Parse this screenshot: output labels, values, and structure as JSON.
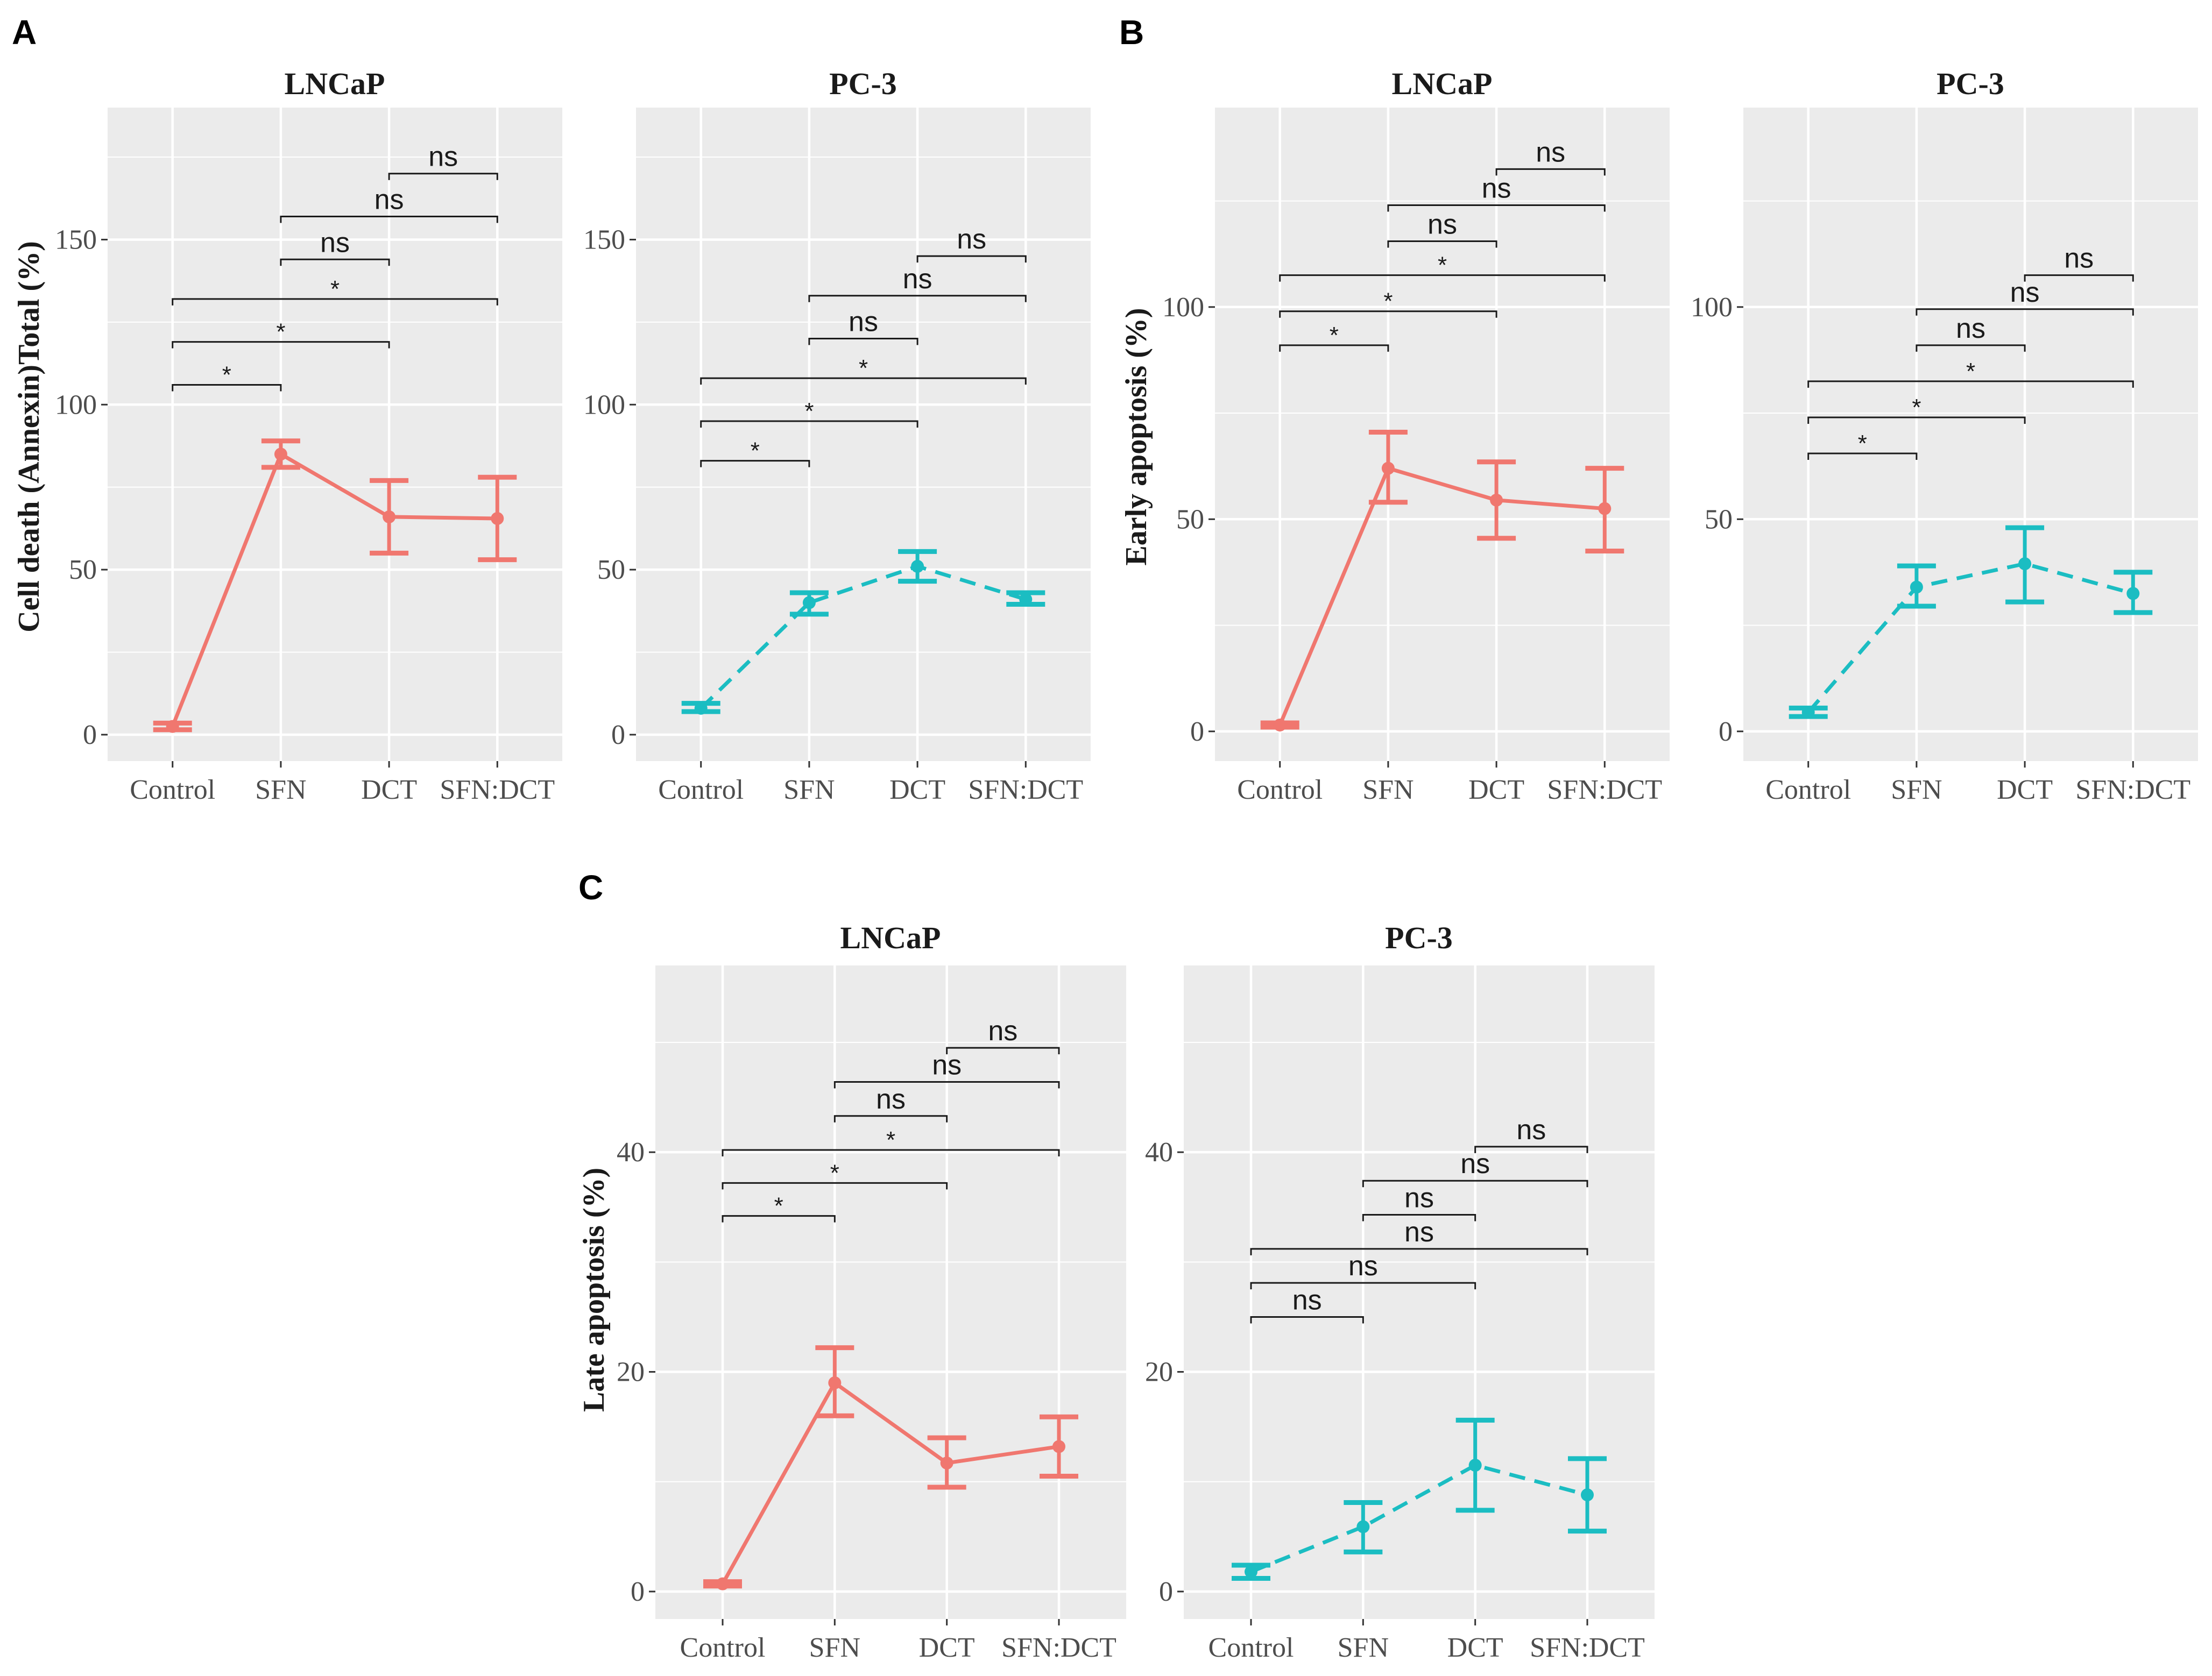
{
  "colors": {
    "LNCaP": "#F0776F",
    "PC-3": "#1BBDC2",
    "panel_bg": "#EBEBEB",
    "grid": "#FFFFFF",
    "bracket": "#1a1a1a"
  },
  "chart_data": [
    {
      "panel": "A",
      "type": "line",
      "ylabel": "Cell death (Annexin)Total (%)",
      "facets": [
        {
          "title": "LNCaP",
          "color_key": "LNCaP",
          "line_style": "solid",
          "categories": [
            "Control",
            "SFN",
            "DCT",
            "SFN:DCT"
          ],
          "ylim": [
            -8,
            190
          ],
          "yticks": [
            0,
            50,
            100,
            150
          ],
          "values": [
            2.5,
            85,
            66,
            65.5
          ],
          "err_low": [
            1.5,
            81,
            55,
            53
          ],
          "err_high": [
            3.5,
            89,
            77,
            78
          ],
          "comparisons": [
            {
              "from": 1,
              "to": 2,
              "y": 106,
              "label": "*"
            },
            {
              "from": 1,
              "to": 3,
              "y": 119,
              "label": "*"
            },
            {
              "from": 1,
              "to": 4,
              "y": 132,
              "label": "*"
            },
            {
              "from": 2,
              "to": 3,
              "y": 144,
              "label": "ns"
            },
            {
              "from": 2,
              "to": 4,
              "y": 157,
              "label": "ns"
            },
            {
              "from": 3,
              "to": 4,
              "y": 170,
              "label": "ns"
            }
          ]
        },
        {
          "title": "PC-3",
          "color_key": "PC-3",
          "line_style": "dashed",
          "categories": [
            "Control",
            "SFN",
            "DCT",
            "SFN:DCT"
          ],
          "ylim": [
            -8,
            190
          ],
          "yticks": [
            0,
            50,
            100,
            150
          ],
          "values": [
            8,
            40,
            51,
            41
          ],
          "err_low": [
            7,
            36.5,
            46.5,
            39.5
          ],
          "err_high": [
            9.5,
            43,
            55.5,
            43
          ],
          "comparisons": [
            {
              "from": 1,
              "to": 2,
              "y": 83,
              "label": "*"
            },
            {
              "from": 1,
              "to": 3,
              "y": 95,
              "label": "*"
            },
            {
              "from": 1,
              "to": 4,
              "y": 108,
              "label": "*"
            },
            {
              "from": 2,
              "to": 3,
              "y": 120,
              "label": "ns"
            },
            {
              "from": 2,
              "to": 4,
              "y": 133,
              "label": "ns"
            },
            {
              "from": 3,
              "to": 4,
              "y": 145,
              "label": "ns"
            }
          ]
        }
      ]
    },
    {
      "panel": "B",
      "type": "line",
      "ylabel": "Early apoptosis (%)",
      "facets": [
        {
          "title": "LNCaP",
          "color_key": "LNCaP",
          "line_style": "solid",
          "categories": [
            "Control",
            "SFN",
            "DCT",
            "SFN:DCT"
          ],
          "ylim": [
            -7,
            147
          ],
          "yticks": [
            0,
            50,
            100
          ],
          "values": [
            1.5,
            62,
            54.5,
            52.5
          ],
          "err_low": [
            1,
            54,
            45.5,
            42.5
          ],
          "err_high": [
            2,
            70.5,
            63.5,
            62
          ],
          "comparisons": [
            {
              "from": 1,
              "to": 2,
              "y": 91,
              "label": "*"
            },
            {
              "from": 1,
              "to": 3,
              "y": 99,
              "label": "*"
            },
            {
              "from": 1,
              "to": 4,
              "y": 107.5,
              "label": "*"
            },
            {
              "from": 2,
              "to": 3,
              "y": 115.5,
              "label": "ns"
            },
            {
              "from": 2,
              "to": 4,
              "y": 124,
              "label": "ns"
            },
            {
              "from": 3,
              "to": 4,
              "y": 132.5,
              "label": "ns"
            }
          ]
        },
        {
          "title": "PC-3",
          "color_key": "PC-3",
          "line_style": "dashed",
          "categories": [
            "Control",
            "SFN",
            "DCT",
            "SFN:DCT"
          ],
          "ylim": [
            -7,
            147
          ],
          "yticks": [
            0,
            50,
            100
          ],
          "values": [
            4.5,
            34,
            39.5,
            32.5
          ],
          "err_low": [
            3.5,
            29.5,
            30.5,
            28
          ],
          "err_high": [
            5.5,
            39,
            48,
            37.5
          ],
          "comparisons": [
            {
              "from": 1,
              "to": 2,
              "y": 65.5,
              "label": "*"
            },
            {
              "from": 1,
              "to": 3,
              "y": 74,
              "label": "*"
            },
            {
              "from": 1,
              "to": 4,
              "y": 82.5,
              "label": "*"
            },
            {
              "from": 2,
              "to": 3,
              "y": 91,
              "label": "ns"
            },
            {
              "from": 2,
              "to": 4,
              "y": 99.5,
              "label": "ns"
            },
            {
              "from": 3,
              "to": 4,
              "y": 107.5,
              "label": "ns"
            }
          ]
        }
      ]
    },
    {
      "panel": "C",
      "type": "line",
      "ylabel": "Late apoptosis (%)",
      "facets": [
        {
          "title": "LNCaP",
          "color_key": "LNCaP",
          "line_style": "solid",
          "categories": [
            "Control",
            "SFN",
            "DCT",
            "SFN:DCT"
          ],
          "ylim": [
            -2.5,
            57
          ],
          "yticks": [
            0,
            20,
            40
          ],
          "values": [
            0.7,
            19,
            11.7,
            13.2
          ],
          "err_low": [
            0.5,
            16,
            9.5,
            10.5
          ],
          "err_high": [
            0.9,
            22.2,
            14,
            15.9
          ],
          "comparisons": [
            {
              "from": 1,
              "to": 2,
              "y": 34.2,
              "label": "*"
            },
            {
              "from": 1,
              "to": 3,
              "y": 37.2,
              "label": "*"
            },
            {
              "from": 1,
              "to": 4,
              "y": 40.2,
              "label": "*"
            },
            {
              "from": 2,
              "to": 3,
              "y": 43.3,
              "label": "ns"
            },
            {
              "from": 2,
              "to": 4,
              "y": 46.4,
              "label": "ns"
            },
            {
              "from": 3,
              "to": 4,
              "y": 49.5,
              "label": "ns"
            }
          ]
        },
        {
          "title": "PC-3",
          "color_key": "PC-3",
          "line_style": "dashed",
          "categories": [
            "Control",
            "SFN",
            "DCT",
            "SFN:DCT"
          ],
          "ylim": [
            -2.5,
            57
          ],
          "yticks": [
            0,
            20,
            40
          ],
          "values": [
            1.8,
            5.9,
            11.5,
            8.8
          ],
          "err_low": [
            1.2,
            3.6,
            7.4,
            5.5
          ],
          "err_high": [
            2.4,
            8.1,
            15.6,
            12.1
          ],
          "comparisons": [
            {
              "from": 1,
              "to": 2,
              "y": 25,
              "label": "ns"
            },
            {
              "from": 1,
              "to": 3,
              "y": 28.1,
              "label": "ns"
            },
            {
              "from": 1,
              "to": 4,
              "y": 31.2,
              "label": "ns"
            },
            {
              "from": 2,
              "to": 3,
              "y": 34.3,
              "label": "ns"
            },
            {
              "from": 2,
              "to": 4,
              "y": 37.4,
              "label": "ns"
            },
            {
              "from": 3,
              "to": 4,
              "y": 40.5,
              "label": "ns"
            }
          ]
        }
      ]
    }
  ]
}
